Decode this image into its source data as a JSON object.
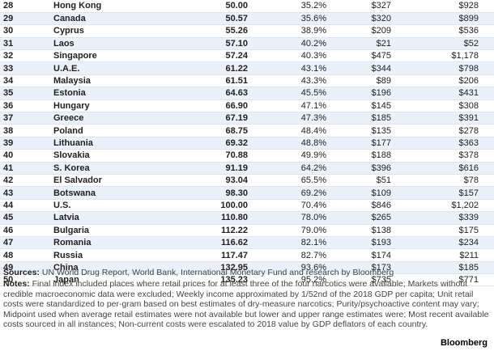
{
  "table": {
    "rows": [
      {
        "rank": "28",
        "country": "Hong Kong",
        "index": "50.00",
        "share": "35.2%",
        "weekly": "$327",
        "total": "$928"
      },
      {
        "rank": "29",
        "country": "Canada",
        "index": "50.57",
        "share": "35.6%",
        "weekly": "$320",
        "total": "$899"
      },
      {
        "rank": "30",
        "country": "Cyprus",
        "index": "55.26",
        "share": "38.9%",
        "weekly": "$209",
        "total": "$536"
      },
      {
        "rank": "31",
        "country": "Laos",
        "index": "57.10",
        "share": "40.2%",
        "weekly": "$21",
        "total": "$52"
      },
      {
        "rank": "32",
        "country": "Singapore",
        "index": "57.24",
        "share": "40.3%",
        "weekly": "$475",
        "total": "$1,178"
      },
      {
        "rank": "33",
        "country": "U.A.E.",
        "index": "61.22",
        "share": "43.1%",
        "weekly": "$344",
        "total": "$798"
      },
      {
        "rank": "34",
        "country": "Malaysia",
        "index": "61.51",
        "share": "43.3%",
        "weekly": "$89",
        "total": "$206"
      },
      {
        "rank": "35",
        "country": "Estonia",
        "index": "64.63",
        "share": "45.5%",
        "weekly": "$196",
        "total": "$431"
      },
      {
        "rank": "36",
        "country": "Hungary",
        "index": "66.90",
        "share": "47.1%",
        "weekly": "$145",
        "total": "$308"
      },
      {
        "rank": "37",
        "country": "Greece",
        "index": "67.19",
        "share": "47.3%",
        "weekly": "$185",
        "total": "$391"
      },
      {
        "rank": "38",
        "country": "Poland",
        "index": "68.75",
        "share": "48.4%",
        "weekly": "$135",
        "total": "$278"
      },
      {
        "rank": "39",
        "country": "Lithuania",
        "index": "69.32",
        "share": "48.8%",
        "weekly": "$177",
        "total": "$363"
      },
      {
        "rank": "40",
        "country": "Slovakia",
        "index": "70.88",
        "share": "49.9%",
        "weekly": "$188",
        "total": "$378"
      },
      {
        "rank": "41",
        "country": "S. Korea",
        "index": "91.19",
        "share": "64.2%",
        "weekly": "$396",
        "total": "$616"
      },
      {
        "rank": "42",
        "country": "El Salvador",
        "index": "93.04",
        "share": "65.5%",
        "weekly": "$51",
        "total": "$78"
      },
      {
        "rank": "43",
        "country": "Botswana",
        "index": "98.30",
        "share": "69.2%",
        "weekly": "$109",
        "total": "$157"
      },
      {
        "rank": "44",
        "country": "U.S.",
        "index": "100.00",
        "share": "70.4%",
        "weekly": "$846",
        "total": "$1,202"
      },
      {
        "rank": "45",
        "country": "Latvia",
        "index": "110.80",
        "share": "78.0%",
        "weekly": "$265",
        "total": "$339"
      },
      {
        "rank": "46",
        "country": "Bulgaria",
        "index": "112.22",
        "share": "79.0%",
        "weekly": "$138",
        "total": "$175"
      },
      {
        "rank": "47",
        "country": "Romania",
        "index": "116.62",
        "share": "82.1%",
        "weekly": "$193",
        "total": "$234"
      },
      {
        "rank": "48",
        "country": "Russia",
        "index": "117.47",
        "share": "82.7%",
        "weekly": "$174",
        "total": "$211"
      },
      {
        "rank": "49",
        "country": "China",
        "index": "132.95",
        "share": "93.6%",
        "weekly": "$173",
        "total": "$185"
      },
      {
        "rank": "50",
        "country": "Japan",
        "index": "135.23",
        "share": "95.2%",
        "weekly": "$735",
        "total": "$771"
      }
    ]
  },
  "footer": {
    "sources_label": "Sources:",
    "sources_text": " UN World Drug Report, World Bank, International Monetary Fund and research by Bloomberg",
    "notes_label": "Notes:",
    "notes_text": " Final index included places where retail prices for at least three of the four narcotics were available; Markets without credible macroeconomic data were excluded; Weekly income approximated by 1/52nd of the 2018 GDP per capita; Unit retail costs were standardized to per-gram based on best estimates of dry-measure narcotics; Purity/psychoactive content may vary; Midpoint used when average retail estimates were not available but lower and upper range estimates were; Most recent available costs sourced in all instances; Non-current costs were escalated to 2018 value by GDP deflators of each country.",
    "brand": "Bloomberg"
  }
}
